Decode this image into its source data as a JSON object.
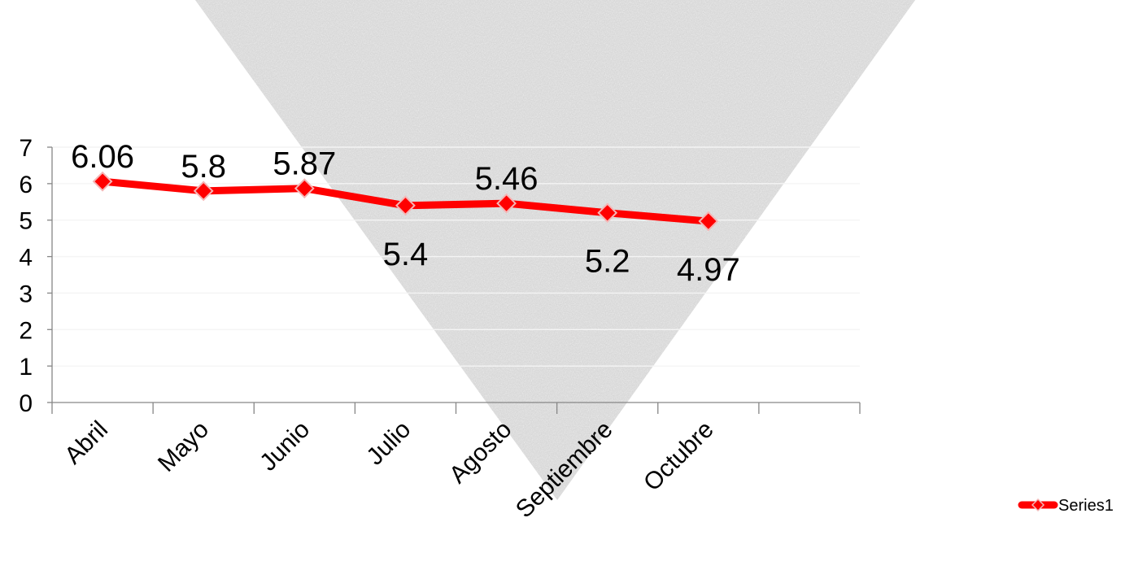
{
  "chart_data": {
    "type": "line",
    "categories": [
      "Abril",
      "Mayo",
      "Junio",
      "Julio",
      "Agosto",
      "Septiembre",
      "Octubre"
    ],
    "series": [
      {
        "name": "Series1",
        "values": [
          6.06,
          5.8,
          5.87,
          5.4,
          5.46,
          5.2,
          4.97
        ],
        "labels": [
          "6.06",
          "5.8",
          "5.87",
          "5.4",
          "5.46",
          "5.2",
          "4.97"
        ],
        "label_positions": [
          "above",
          "above",
          "above",
          "below",
          "above",
          "below",
          "below"
        ]
      }
    ],
    "ylim": [
      0,
      7
    ],
    "y_ticks": [
      "0",
      "1",
      "2",
      "3",
      "4",
      "5",
      "6",
      "7"
    ],
    "grid": true,
    "legend_position": "right",
    "line_color": "#ff0000",
    "marker_color": "#ff0000",
    "marker": "diamond",
    "title": "",
    "xlabel": "",
    "ylabel": ""
  },
  "background": {
    "shape": "inverted-triangle",
    "texture": "granite",
    "color": "#d9d9d9"
  }
}
